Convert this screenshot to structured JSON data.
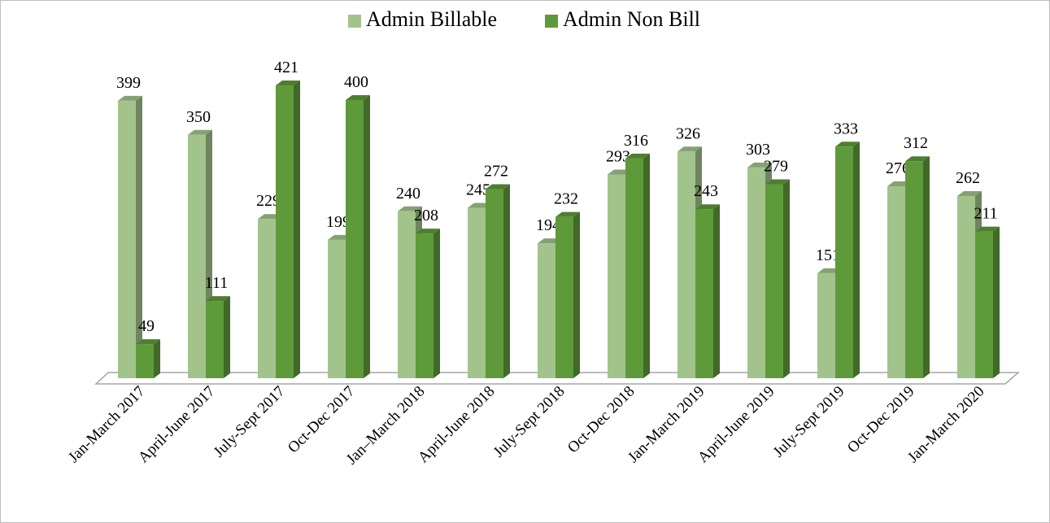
{
  "chart_data": {
    "type": "bar3d",
    "categories": [
      "Jan-March 2017",
      "April-June 2017",
      "July-Sept 2017",
      "Oct-Dec 2017",
      "Jan–March 2018",
      "April-June 2018",
      "July-Sept 2018",
      "Oct-Dec 2018",
      "Jan-March 2019",
      "April-June 2019",
      "July-Sept 2019",
      "Oct-Dec 2019",
      "Jan-March 2020"
    ],
    "series": [
      {
        "name": "Admin Billable",
        "color": "#a2c48c",
        "values": [
          399,
          350,
          229,
          199,
          240,
          245,
          194,
          293,
          326,
          303,
          151,
          276,
          262
        ]
      },
      {
        "name": "Admin Non Bill",
        "color": "#5f9a3a",
        "values": [
          49,
          111,
          421,
          400,
          208,
          272,
          232,
          316,
          243,
          279,
          333,
          312,
          211
        ]
      }
    ],
    "legend": "top"
  }
}
